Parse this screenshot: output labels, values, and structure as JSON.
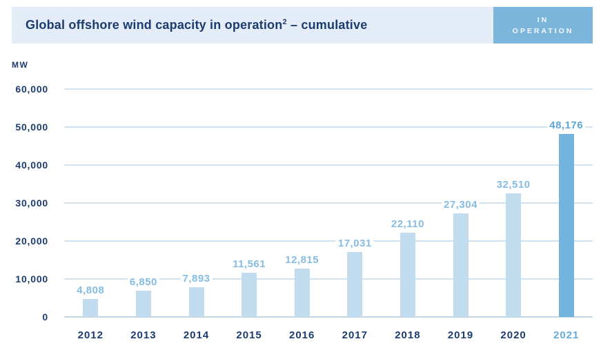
{
  "header": {
    "title_main": "Global offshore wind capacity in operation",
    "title_superscript": "2",
    "title_tail": " – cumulative",
    "badge_line1": "IN",
    "badge_line2": "OPERATION"
  },
  "chart_data": {
    "type": "bar",
    "title": "Global offshore wind capacity in operation² – cumulative",
    "unit_label": "MW",
    "categories": [
      "2012",
      "2013",
      "2014",
      "2015",
      "2016",
      "2017",
      "2018",
      "2019",
      "2020",
      "2021"
    ],
    "values": [
      4808,
      6850,
      7893,
      11561,
      12815,
      17031,
      22110,
      27304,
      32510,
      48176
    ],
    "value_labels": [
      "4,808",
      "6,850",
      "7,893",
      "11,561",
      "12,815",
      "17,031",
      "22,110",
      "27,304",
      "32,510",
      "48,176"
    ],
    "ylabel": "MW",
    "ylim": [
      0,
      60000
    ],
    "yticks": [
      0,
      10000,
      20000,
      30000,
      40000,
      50000,
      60000
    ],
    "ytick_labels": [
      "0",
      "10,000",
      "20,000",
      "30,000",
      "40,000",
      "50,000",
      "60,000"
    ],
    "grid": true,
    "legend": false,
    "highlight_index": 9,
    "colors": {
      "bar": "#c2dcef",
      "bar_highlight": "#74b3dd",
      "value_label": "#85bce4",
      "value_label_highlight": "#5ba6d8",
      "axis_text": "#1c3b6e",
      "xtick_highlight": "#63abdb",
      "gridline": "#cfe2f1",
      "zero_line": "#c3d5e3",
      "header_bg": "#e4edf7",
      "header_text": "#1c3b6e",
      "badge_bg": "#7cb6dd",
      "badge_text": "#ffffff"
    }
  }
}
